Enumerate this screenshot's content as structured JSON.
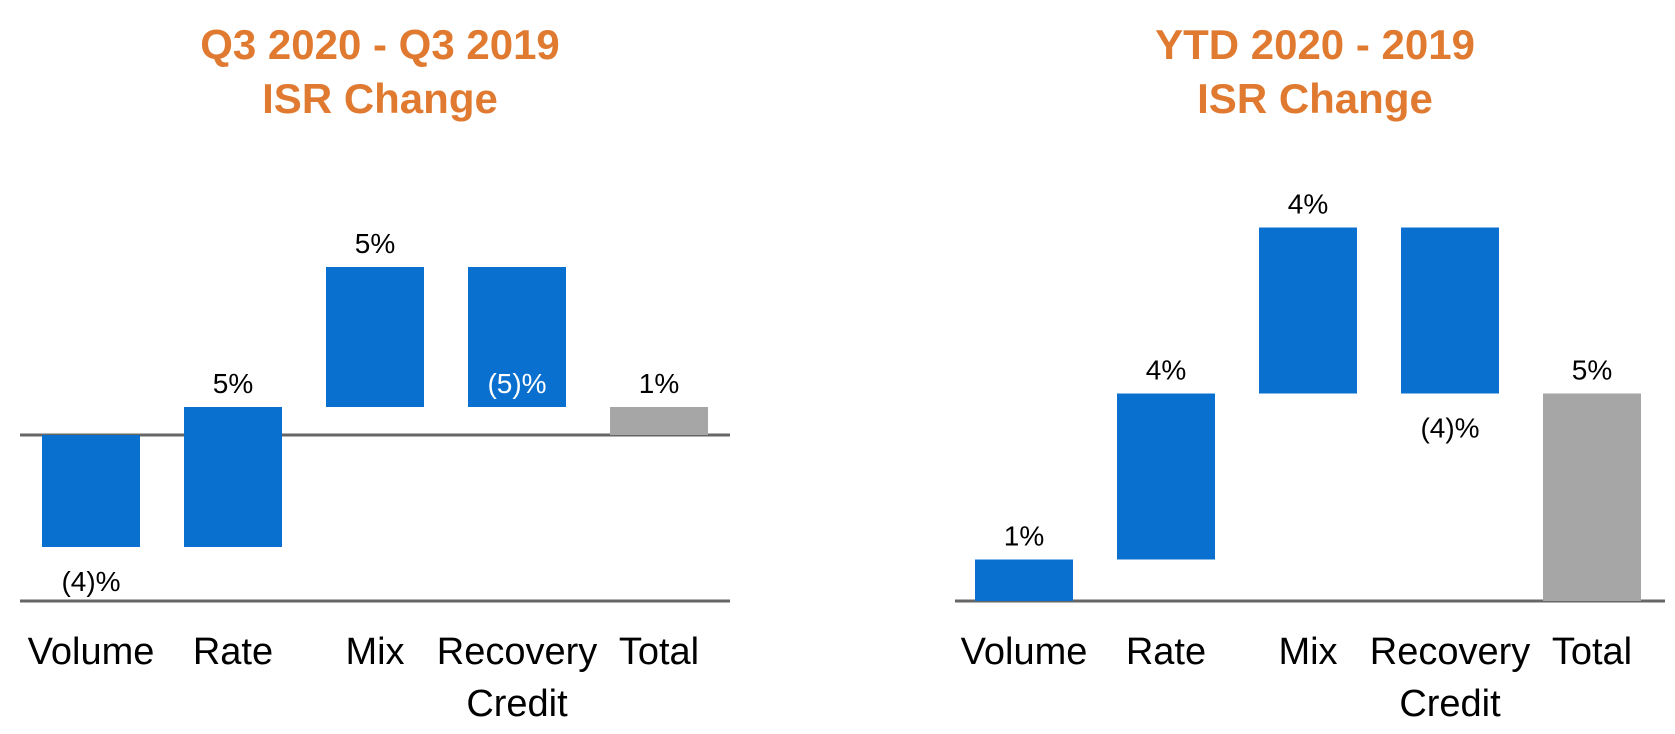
{
  "colors": {
    "title": "#E07A31",
    "bar": "#0A70CF",
    "total": "#A6A6A6",
    "axis": "#666666"
  },
  "chart_data": [
    {
      "type": "bar",
      "variant": "waterfall",
      "title_line1": "Q3 2020 - Q3 2019",
      "title_line2": "ISR Change",
      "categories": [
        [
          "Volume"
        ],
        [
          "Rate"
        ],
        [
          "Mix"
        ],
        [
          "Recovery",
          "Credit"
        ],
        [
          "Total"
        ]
      ],
      "values": [
        -4,
        5,
        5,
        -5,
        1
      ],
      "value_labels": [
        "(4)%",
        "5%",
        "5%",
        "(5)%",
        "1%"
      ],
      "is_total": [
        false,
        false,
        false,
        false,
        true
      ],
      "ylim": [
        -6,
        8
      ]
    },
    {
      "type": "bar",
      "variant": "waterfall",
      "title_line1": "YTD 2020 - 2019",
      "title_line2": "ISR Change",
      "categories": [
        [
          "Volume"
        ],
        [
          "Rate"
        ],
        [
          "Mix"
        ],
        [
          "Recovery",
          "Credit"
        ],
        [
          "Total"
        ]
      ],
      "values": [
        1,
        4,
        4,
        -4,
        5
      ],
      "value_labels": [
        "1%",
        "4%",
        "4%",
        "(4)%",
        "5%"
      ],
      "is_total": [
        false,
        false,
        false,
        false,
        true
      ],
      "ylim": [
        0,
        10
      ]
    }
  ]
}
